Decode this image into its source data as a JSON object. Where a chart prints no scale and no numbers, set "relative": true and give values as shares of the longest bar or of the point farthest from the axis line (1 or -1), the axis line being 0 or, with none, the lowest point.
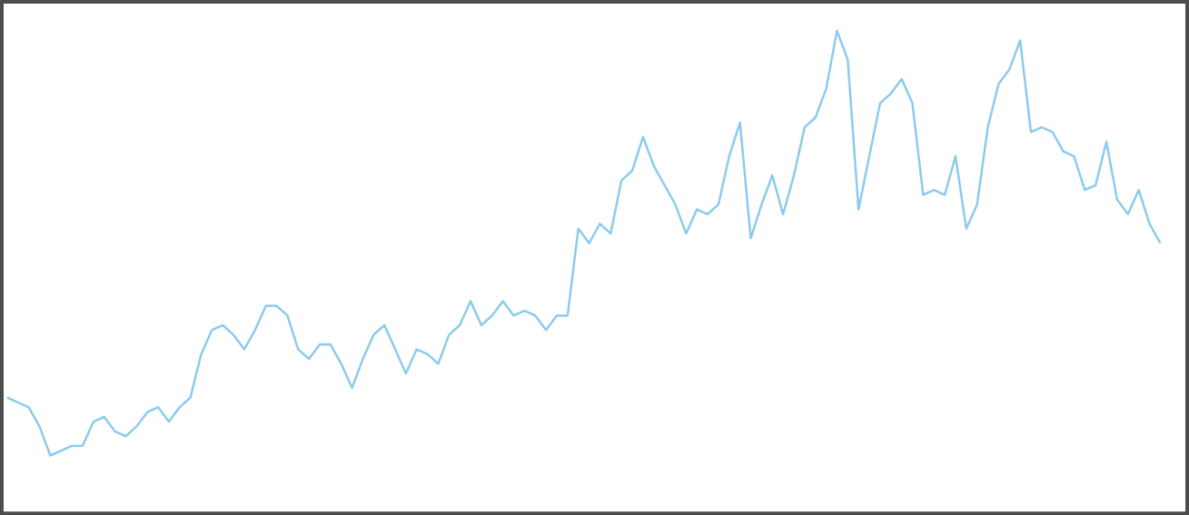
{
  "chart_data": {
    "type": "line",
    "relative": true,
    "color": "#8ccbee",
    "categories": [
      null,
      null,
      null,
      null,
      null,
      null,
      null,
      null,
      null,
      null,
      null,
      null,
      null,
      null,
      null,
      null,
      null,
      null,
      null,
      null,
      null,
      null,
      null,
      null,
      null,
      null,
      null,
      null,
      null,
      null,
      null,
      null,
      null,
      null,
      null,
      null,
      null,
      null,
      null,
      null,
      null,
      null,
      null,
      null,
      null,
      null,
      null,
      null,
      null,
      null,
      null,
      null,
      null,
      null,
      null,
      null,
      null,
      null,
      null,
      null,
      null,
      null,
      null,
      null,
      null,
      null,
      null,
      null,
      null,
      null,
      null,
      null,
      null,
      null,
      null,
      null,
      null,
      null,
      null,
      null,
      null,
      null,
      null,
      null,
      null,
      null,
      null,
      null,
      null,
      null,
      null,
      null,
      null,
      null,
      null,
      null,
      null,
      null,
      null,
      null,
      null,
      null,
      null,
      null,
      null,
      null,
      null,
      null
    ],
    "values": [
      0.24,
      0.23,
      0.22,
      0.18,
      0.12,
      0.13,
      0.14,
      0.14,
      0.19,
      0.2,
      0.17,
      0.16,
      0.18,
      0.21,
      0.22,
      0.19,
      0.22,
      0.24,
      0.33,
      0.38,
      0.39,
      0.37,
      0.34,
      0.38,
      0.43,
      0.43,
      0.41,
      0.34,
      0.32,
      0.35,
      0.35,
      0.31,
      0.26,
      0.32,
      0.37,
      0.39,
      0.34,
      0.29,
      0.34,
      0.33,
      0.31,
      0.37,
      0.39,
      0.44,
      0.39,
      0.41,
      0.44,
      0.41,
      0.42,
      0.41,
      0.38,
      0.41,
      0.41,
      0.59,
      0.56,
      0.6,
      0.58,
      0.69,
      0.71,
      0.78,
      0.72,
      0.68,
      0.64,
      0.58,
      0.63,
      0.62,
      0.64,
      0.74,
      0.81,
      0.57,
      0.64,
      0.7,
      0.62,
      0.7,
      0.8,
      0.82,
      0.88,
      1.0,
      0.94,
      0.63,
      0.74,
      0.85,
      0.87,
      0.9,
      0.85,
      0.66,
      0.67,
      0.66,
      0.74,
      0.59,
      0.64,
      0.8,
      0.89,
      0.92,
      0.98,
      0.79,
      0.8,
      0.79,
      0.75,
      0.74,
      0.67,
      0.68,
      0.77,
      0.65,
      0.62,
      0.67,
      0.6,
      0.56
    ]
  }
}
